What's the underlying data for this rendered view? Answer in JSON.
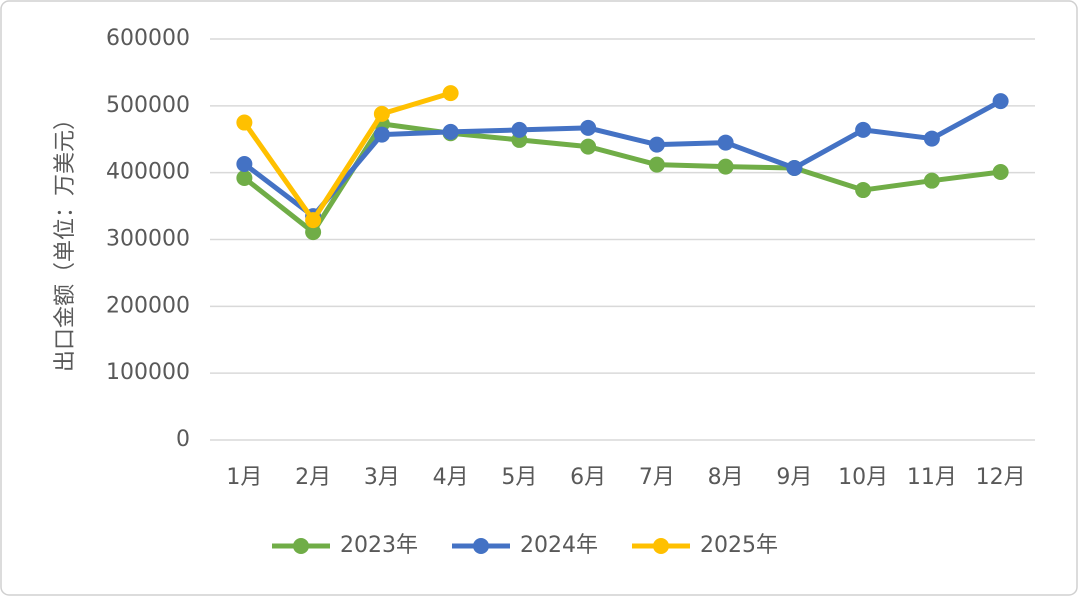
{
  "chart_data": {
    "type": "line",
    "y_label": "出口金额（单位：万美元）",
    "categories": [
      "1月",
      "2月",
      "3月",
      "4月",
      "5月",
      "6月",
      "7月",
      "8月",
      "9月",
      "10月",
      "11月",
      "12月"
    ],
    "series": [
      {
        "name": "2023年",
        "color": "#70ad47",
        "values": [
          392000,
          311000,
          473000,
          459000,
          449000,
          439000,
          412000,
          409000,
          407000,
          374000,
          388000,
          401000
        ]
      },
      {
        "name": "2024年",
        "color": "#4472c4",
        "values": [
          413000,
          335000,
          457000,
          461000,
          464000,
          467000,
          442000,
          445000,
          407000,
          464000,
          451000,
          507000
        ]
      },
      {
        "name": "2025年",
        "color": "#ffc000",
        "values": [
          475000,
          329000,
          488000,
          519000,
          null,
          null,
          null,
          null,
          null,
          null,
          null,
          null
        ]
      }
    ],
    "ylim": [
      0,
      600000
    ],
    "yticks": [
      0,
      100000,
      200000,
      300000,
      400000,
      500000,
      600000
    ],
    "grid": true,
    "legend": "bottom"
  }
}
